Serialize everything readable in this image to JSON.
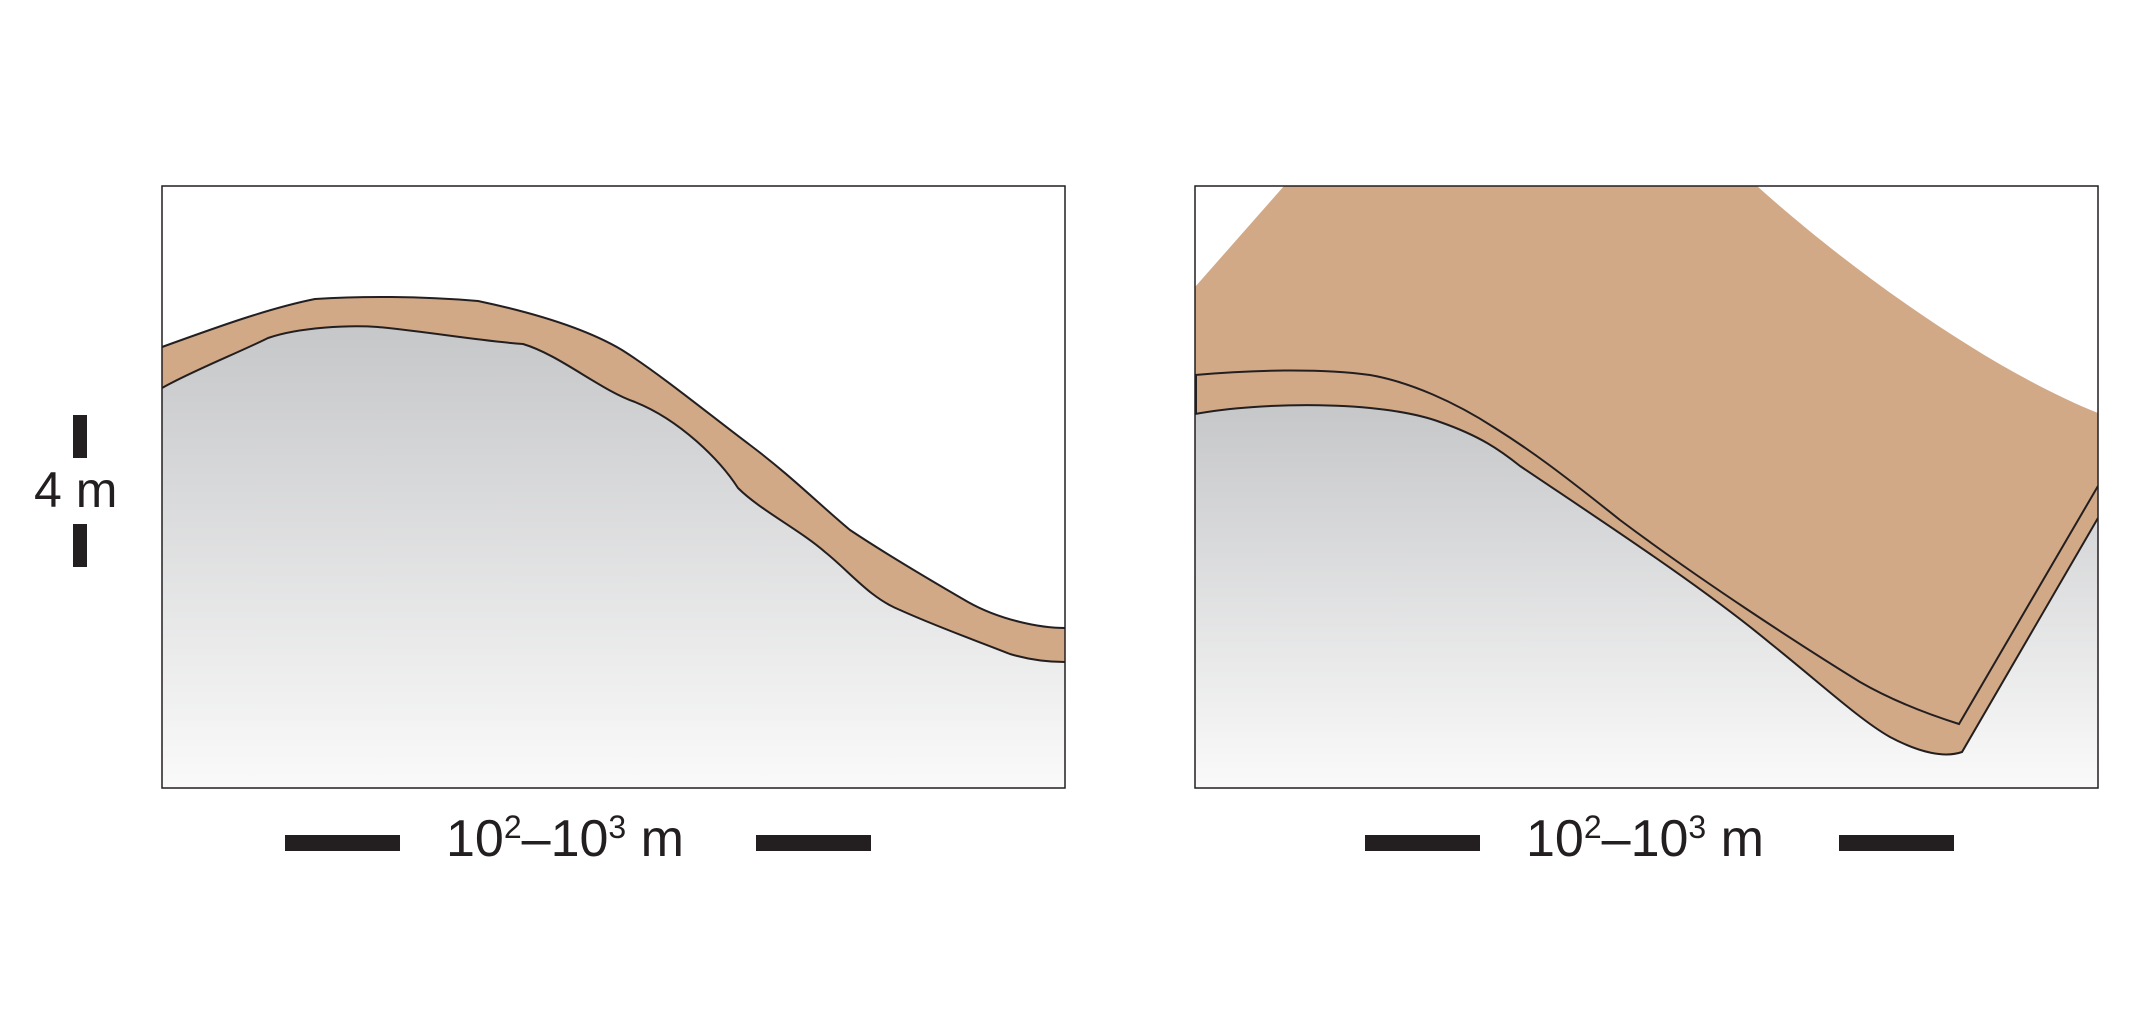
{
  "colors": {
    "sediment": "#d2a987",
    "outline": "#231f20",
    "bar": "#231f20",
    "ground_top": "#c6c7c9",
    "ground_bottom": "#fafafa",
    "background": "#ffffff"
  },
  "vertical_scale": {
    "value": "4",
    "unit": "m"
  },
  "horizontal_scales": [
    {
      "base_a": "10",
      "exp_a": "2",
      "dash": "–",
      "base_b": "10",
      "exp_b": "3",
      "unit": "m"
    },
    {
      "base_a": "10",
      "exp_a": "2",
      "dash": "–",
      "base_b": "10",
      "exp_b": "3",
      "unit": "m"
    }
  ]
}
